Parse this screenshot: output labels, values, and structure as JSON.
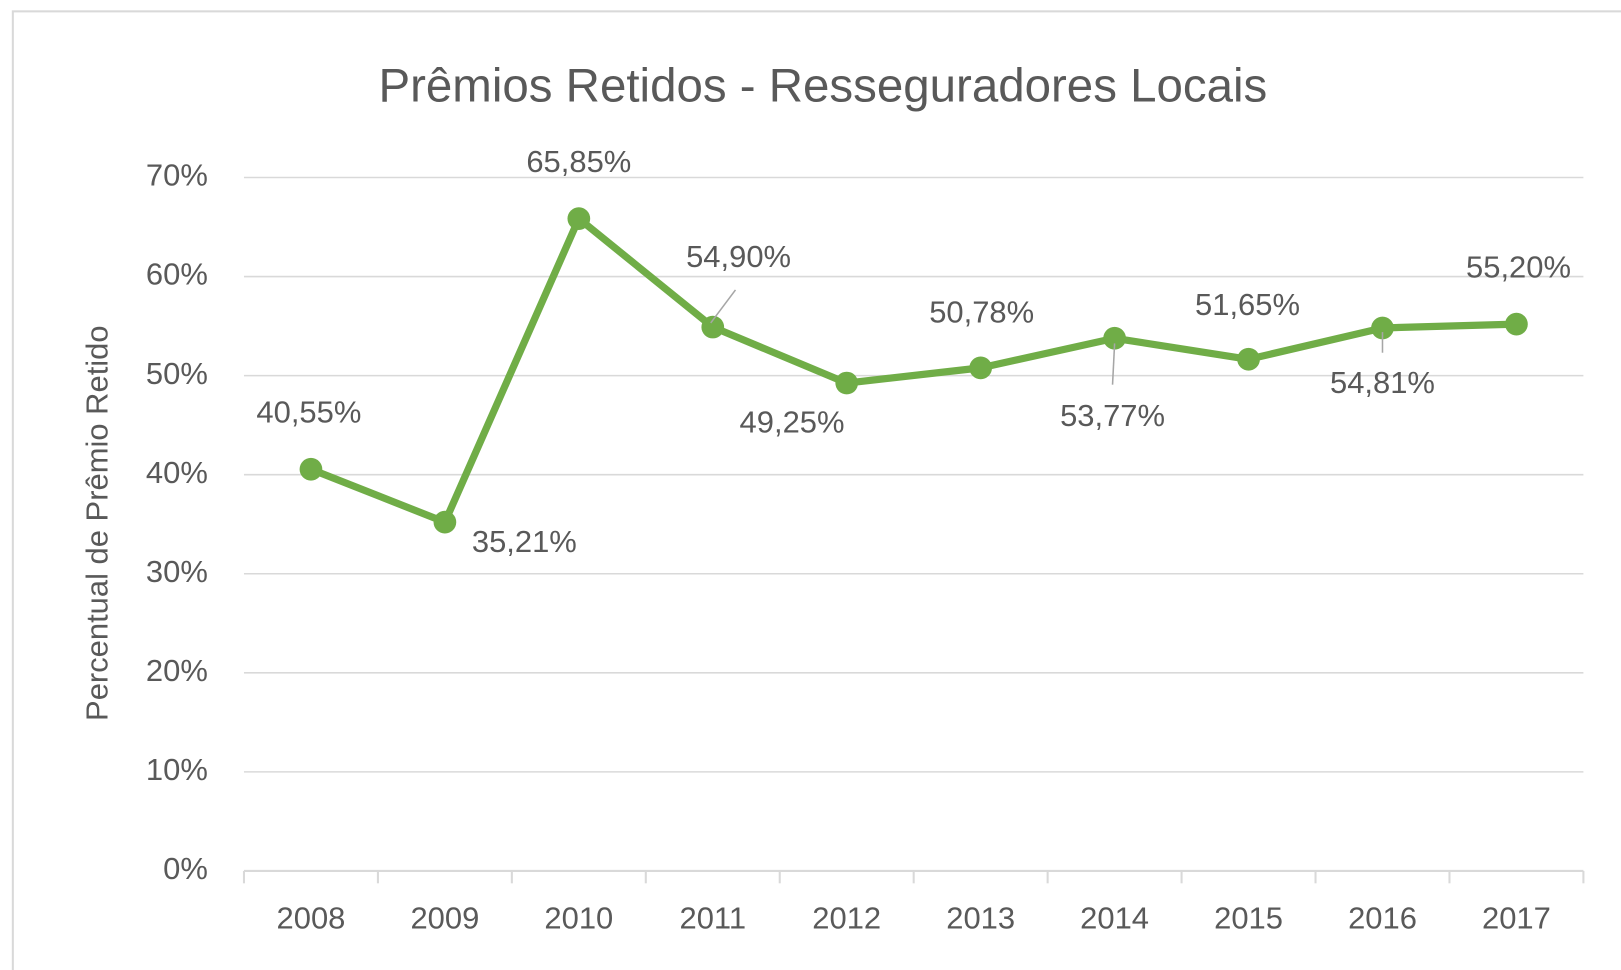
{
  "chart_data": {
    "type": "line",
    "title": "Prêmios Retidos - Resseguradores  Locais",
    "y_label": "Percentual de Prêmio Retido",
    "categories": [
      "2008",
      "2009",
      "2010",
      "2011",
      "2012",
      "2013",
      "2014",
      "2015",
      "2016",
      "2017"
    ],
    "series": [
      {
        "name": "Prêmios Retidos",
        "color": "#70ad47",
        "values": [
          40.55,
          35.21,
          65.85,
          54.9,
          49.25,
          50.78,
          53.77,
          51.65,
          54.81,
          55.2
        ],
        "value_labels": [
          "40,55%",
          "35,21%",
          "65,85%",
          "54,90%",
          "49,25%",
          "50,78%",
          "53,77%",
          "51,65%",
          "54,81%",
          "55,20%"
        ]
      }
    ],
    "ylim": [
      0,
      70
    ],
    "yticks": [
      {
        "value": 0,
        "label": "0%"
      },
      {
        "value": 10,
        "label": "10%"
      },
      {
        "value": 20,
        "label": "20%"
      },
      {
        "value": 30,
        "label": "30%"
      },
      {
        "value": 40,
        "label": "40%"
      },
      {
        "value": 50,
        "label": "50%"
      },
      {
        "value": 60,
        "label": "60%"
      },
      {
        "value": 70,
        "label": "70%"
      }
    ],
    "grid": true
  }
}
